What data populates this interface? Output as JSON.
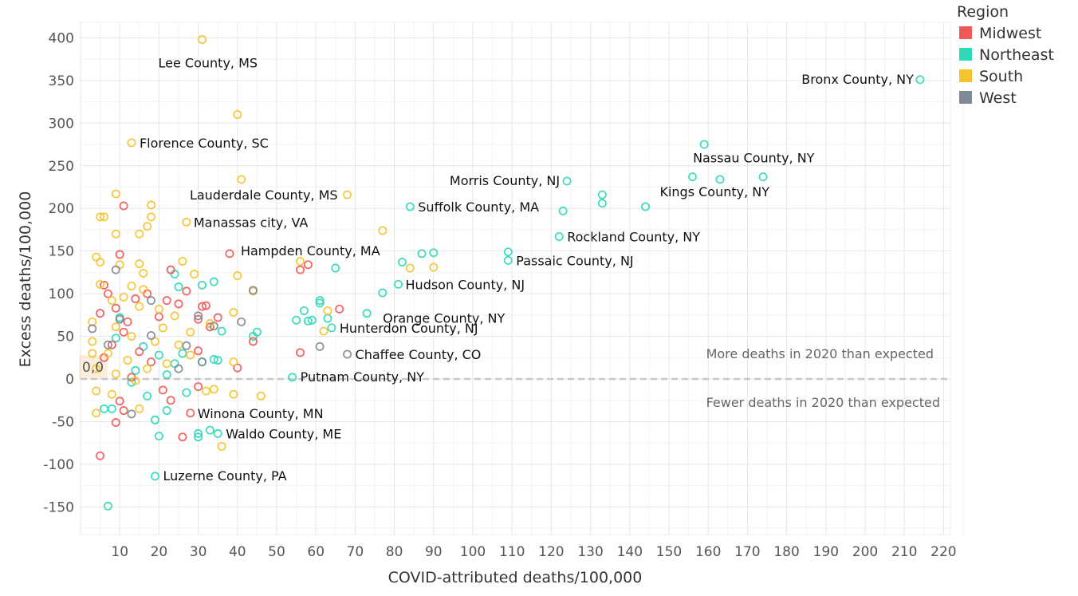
{
  "chart_data": {
    "type": "scatter",
    "xlabel": "COVID-attributed deaths/100,000",
    "ylabel": "Excess deaths/100,000",
    "xlim": [
      0,
      225
    ],
    "ylim": [
      -180,
      400
    ],
    "xticks": [
      10,
      20,
      30,
      40,
      50,
      60,
      70,
      80,
      90,
      100,
      110,
      120,
      130,
      140,
      150,
      160,
      170,
      180,
      190,
      200,
      210,
      220
    ],
    "yticks": [
      -150,
      -100,
      -50,
      0,
      50,
      100,
      150,
      200,
      250,
      300,
      350,
      400
    ],
    "reference_line": {
      "y": 0,
      "style": "dashed"
    },
    "origin_label": "0,0",
    "notes": {
      "above": "More deaths in 2020 than expected",
      "below": "Fewer deaths in 2020 than expected"
    },
    "legend": {
      "title": "Region",
      "position": "top-right",
      "items": [
        {
          "name": "Midwest",
          "color": "#f25757"
        },
        {
          "name": "Northeast",
          "color": "#2ed9b8"
        },
        {
          "name": "South",
          "color": "#f5c32c"
        },
        {
          "name": "West",
          "color": "#808a96"
        }
      ]
    },
    "labeled_points": [
      {
        "label": "Lee County, MS",
        "region": "South",
        "x": 31,
        "y": 398
      },
      {
        "label": "Bronx County, NY",
        "region": "Northeast",
        "x": 214,
        "y": 351
      },
      {
        "label": "Florence County, SC",
        "region": "South",
        "x": 13,
        "y": 277
      },
      {
        "label": "Nassau County, NY",
        "region": "Northeast",
        "x": 174,
        "y": 237
      },
      {
        "label": "Morris County, NJ",
        "region": "Northeast",
        "x": 124,
        "y": 232
      },
      {
        "label": "Lauderdale County, MS",
        "region": "South",
        "x": 68,
        "y": 216
      },
      {
        "label": "Kings County, NY",
        "region": "Northeast",
        "x": 144,
        "y": 202
      },
      {
        "label": "Suffolk County, MA",
        "region": "Northeast",
        "x": 84,
        "y": 202
      },
      {
        "label": "Manassas city, VA",
        "region": "South",
        "x": 27,
        "y": 184
      },
      {
        "label": "Rockland County, NY",
        "region": "Northeast",
        "x": 122,
        "y": 167
      },
      {
        "label": "Hampden County, MA",
        "region": "Midwest",
        "x": 38,
        "y": 147
      },
      {
        "label": "Passaic County, NJ",
        "region": "Northeast",
        "x": 109,
        "y": 139
      },
      {
        "label": "Hudson County, NJ",
        "region": "Northeast",
        "x": 81,
        "y": 111
      },
      {
        "label": "Orange County, NY",
        "region": "Northeast",
        "x": 73,
        "y": 77
      },
      {
        "label": "Hunterdon County, NJ",
        "region": "Northeast",
        "x": 64,
        "y": 60
      },
      {
        "label": "Chaffee County, CO",
        "region": "West",
        "x": 68,
        "y": 29
      },
      {
        "label": "Putnam County, NY",
        "region": "Northeast",
        "x": 54,
        "y": 2
      },
      {
        "label": "Winona County, MN",
        "region": "Midwest",
        "x": 28,
        "y": -40
      },
      {
        "label": "Waldo County, ME",
        "region": "Northeast",
        "x": 35,
        "y": -64
      },
      {
        "label": "Luzerne County, PA",
        "region": "Northeast",
        "x": 19,
        "y": -114
      }
    ],
    "points": [
      {
        "region": "Northeast",
        "x": 159,
        "y": 275
      },
      {
        "region": "Northeast",
        "x": 156,
        "y": 237
      },
      {
        "region": "Northeast",
        "x": 163,
        "y": 234
      },
      {
        "region": "Northeast",
        "x": 133,
        "y": 216
      },
      {
        "region": "Northeast",
        "x": 133,
        "y": 206
      },
      {
        "region": "Northeast",
        "x": 123,
        "y": 197
      },
      {
        "region": "Northeast",
        "x": 109,
        "y": 149
      },
      {
        "region": "Northeast",
        "x": 90,
        "y": 148
      },
      {
        "region": "Northeast",
        "x": 87,
        "y": 147
      },
      {
        "region": "Northeast",
        "x": 82,
        "y": 137
      },
      {
        "region": "Northeast",
        "x": 77,
        "y": 101
      },
      {
        "region": "Northeast",
        "x": 65,
        "y": 130
      },
      {
        "region": "Northeast",
        "x": 61,
        "y": 92
      },
      {
        "region": "Northeast",
        "x": 61,
        "y": 89
      },
      {
        "region": "Northeast",
        "x": 58,
        "y": 68
      },
      {
        "region": "Northeast",
        "x": 59,
        "y": 69
      },
      {
        "region": "Northeast",
        "x": 55,
        "y": 69
      },
      {
        "region": "Northeast",
        "x": 57,
        "y": 80
      },
      {
        "region": "Northeast",
        "x": 63,
        "y": 71
      },
      {
        "region": "Northeast",
        "x": 45,
        "y": 55
      },
      {
        "region": "Northeast",
        "x": 44,
        "y": 50
      },
      {
        "region": "Northeast",
        "x": 34,
        "y": 114
      },
      {
        "region": "Northeast",
        "x": 31,
        "y": 110
      },
      {
        "region": "Northeast",
        "x": 25,
        "y": 108
      },
      {
        "region": "Northeast",
        "x": 24,
        "y": 123
      },
      {
        "region": "Northeast",
        "x": 36,
        "y": 56
      },
      {
        "region": "Northeast",
        "x": 34,
        "y": 23
      },
      {
        "region": "Northeast",
        "x": 35,
        "y": 22
      },
      {
        "region": "Northeast",
        "x": 31,
        "y": 20
      },
      {
        "region": "Northeast",
        "x": 26,
        "y": 30
      },
      {
        "region": "Northeast",
        "x": 24,
        "y": 18
      },
      {
        "region": "Northeast",
        "x": 22,
        "y": 5
      },
      {
        "region": "Northeast",
        "x": 27,
        "y": -16
      },
      {
        "region": "Northeast",
        "x": 30,
        "y": -64
      },
      {
        "region": "Northeast",
        "x": 30,
        "y": -68
      },
      {
        "region": "Northeast",
        "x": 33,
        "y": -60
      },
      {
        "region": "Northeast",
        "x": 20,
        "y": -67
      },
      {
        "region": "Northeast",
        "x": 19,
        "y": -48
      },
      {
        "region": "Northeast",
        "x": 22,
        "y": -37
      },
      {
        "region": "Northeast",
        "x": 17,
        "y": -20
      },
      {
        "region": "Northeast",
        "x": 13,
        "y": -4
      },
      {
        "region": "Northeast",
        "x": 6,
        "y": -35
      },
      {
        "region": "Northeast",
        "x": 8,
        "y": -35
      },
      {
        "region": "Northeast",
        "x": 7,
        "y": -149
      },
      {
        "region": "Northeast",
        "x": 10,
        "y": 72
      },
      {
        "region": "Northeast",
        "x": 9,
        "y": 48
      },
      {
        "region": "Northeast",
        "x": 16,
        "y": 38
      },
      {
        "region": "Northeast",
        "x": 20,
        "y": 28
      },
      {
        "region": "Northeast",
        "x": 14,
        "y": 10
      },
      {
        "region": "Midwest",
        "x": 11,
        "y": 203
      },
      {
        "region": "Midwest",
        "x": 10,
        "y": 146
      },
      {
        "region": "Midwest",
        "x": 56,
        "y": 128
      },
      {
        "region": "Midwest",
        "x": 58,
        "y": 134
      },
      {
        "region": "Midwest",
        "x": 66,
        "y": 82
      },
      {
        "region": "Midwest",
        "x": 56,
        "y": 31
      },
      {
        "region": "Midwest",
        "x": 44,
        "y": 44
      },
      {
        "region": "Midwest",
        "x": 40,
        "y": 13
      },
      {
        "region": "Midwest",
        "x": 27,
        "y": 103
      },
      {
        "region": "Midwest",
        "x": 23,
        "y": 128
      },
      {
        "region": "Midwest",
        "x": 31,
        "y": 85
      },
      {
        "region": "Midwest",
        "x": 32,
        "y": 86
      },
      {
        "region": "Midwest",
        "x": 30,
        "y": 70
      },
      {
        "region": "Midwest",
        "x": 25,
        "y": 88
      },
      {
        "region": "Midwest",
        "x": 22,
        "y": 92
      },
      {
        "region": "Midwest",
        "x": 20,
        "y": 73
      },
      {
        "region": "Midwest",
        "x": 17,
        "y": 100
      },
      {
        "region": "Midwest",
        "x": 14,
        "y": 94
      },
      {
        "region": "Midwest",
        "x": 6,
        "y": 110
      },
      {
        "region": "Midwest",
        "x": 7,
        "y": 100
      },
      {
        "region": "Midwest",
        "x": 9,
        "y": 83
      },
      {
        "region": "Midwest",
        "x": 12,
        "y": 67
      },
      {
        "region": "Midwest",
        "x": 5,
        "y": 77
      },
      {
        "region": "Midwest",
        "x": 11,
        "y": 55
      },
      {
        "region": "Midwest",
        "x": 8,
        "y": 40
      },
      {
        "region": "Midwest",
        "x": 6,
        "y": 25
      },
      {
        "region": "Midwest",
        "x": 15,
        "y": 32
      },
      {
        "region": "Midwest",
        "x": 18,
        "y": 20
      },
      {
        "region": "Midwest",
        "x": 13,
        "y": 2
      },
      {
        "region": "Midwest",
        "x": 10,
        "y": -26
      },
      {
        "region": "Midwest",
        "x": 11,
        "y": -37
      },
      {
        "region": "Midwest",
        "x": 9,
        "y": -51
      },
      {
        "region": "Midwest",
        "x": 23,
        "y": -25
      },
      {
        "region": "Midwest",
        "x": 21,
        "y": -13
      },
      {
        "region": "Midwest",
        "x": 26,
        "y": -68
      },
      {
        "region": "Midwest",
        "x": 5,
        "y": -90
      },
      {
        "region": "Midwest",
        "x": 30,
        "y": 33
      },
      {
        "region": "Midwest",
        "x": 30,
        "y": -9
      },
      {
        "region": "Midwest",
        "x": 35,
        "y": 72
      },
      {
        "region": "Midwest",
        "x": 33,
        "y": 61
      },
      {
        "region": "South",
        "x": 40,
        "y": 310
      },
      {
        "region": "South",
        "x": 41,
        "y": 234
      },
      {
        "region": "South",
        "x": 9,
        "y": 217
      },
      {
        "region": "South",
        "x": 18,
        "y": 204
      },
      {
        "region": "South",
        "x": 5,
        "y": 190
      },
      {
        "region": "South",
        "x": 6,
        "y": 190
      },
      {
        "region": "South",
        "x": 18,
        "y": 190
      },
      {
        "region": "South",
        "x": 17,
        "y": 179
      },
      {
        "region": "South",
        "x": 9,
        "y": 170
      },
      {
        "region": "South",
        "x": 15,
        "y": 170
      },
      {
        "region": "South",
        "x": 77,
        "y": 174
      },
      {
        "region": "South",
        "x": 84,
        "y": 130
      },
      {
        "region": "South",
        "x": 90,
        "y": 131
      },
      {
        "region": "South",
        "x": 56,
        "y": 138
      },
      {
        "region": "South",
        "x": 40,
        "y": 121
      },
      {
        "region": "South",
        "x": 44,
        "y": 103
      },
      {
        "region": "South",
        "x": 39,
        "y": 78
      },
      {
        "region": "South",
        "x": 63,
        "y": 80
      },
      {
        "region": "South",
        "x": 62,
        "y": 56
      },
      {
        "region": "South",
        "x": 39,
        "y": 20
      },
      {
        "region": "South",
        "x": 39,
        "y": -18
      },
      {
        "region": "South",
        "x": 46,
        "y": -20
      },
      {
        "region": "South",
        "x": 36,
        "y": -79
      },
      {
        "region": "South",
        "x": 4,
        "y": 143
      },
      {
        "region": "South",
        "x": 5,
        "y": 137
      },
      {
        "region": "South",
        "x": 10,
        "y": 134
      },
      {
        "region": "South",
        "x": 15,
        "y": 135
      },
      {
        "region": "South",
        "x": 16,
        "y": 124
      },
      {
        "region": "South",
        "x": 26,
        "y": 138
      },
      {
        "region": "South",
        "x": 29,
        "y": 123
      },
      {
        "region": "South",
        "x": 5,
        "y": 111
      },
      {
        "region": "South",
        "x": 13,
        "y": 109
      },
      {
        "region": "South",
        "x": 16,
        "y": 105
      },
      {
        "region": "South",
        "x": 11,
        "y": 96
      },
      {
        "region": "South",
        "x": 8,
        "y": 92
      },
      {
        "region": "South",
        "x": 15,
        "y": 85
      },
      {
        "region": "South",
        "x": 20,
        "y": 82
      },
      {
        "region": "South",
        "x": 24,
        "y": 74
      },
      {
        "region": "South",
        "x": 3,
        "y": 67
      },
      {
        "region": "South",
        "x": 9,
        "y": 61
      },
      {
        "region": "South",
        "x": 13,
        "y": 50
      },
      {
        "region": "South",
        "x": 19,
        "y": 44
      },
      {
        "region": "South",
        "x": 25,
        "y": 40
      },
      {
        "region": "South",
        "x": 28,
        "y": 28
      },
      {
        "region": "South",
        "x": 3,
        "y": 44
      },
      {
        "region": "South",
        "x": 7,
        "y": 30
      },
      {
        "region": "South",
        "x": 12,
        "y": 22
      },
      {
        "region": "South",
        "x": 17,
        "y": 12
      },
      {
        "region": "South",
        "x": 22,
        "y": 18
      },
      {
        "region": "South",
        "x": 4,
        "y": 12
      },
      {
        "region": "South",
        "x": 9,
        "y": 6
      },
      {
        "region": "South",
        "x": 14,
        "y": -2
      },
      {
        "region": "South",
        "x": 4,
        "y": -14
      },
      {
        "region": "South",
        "x": 8,
        "y": -18
      },
      {
        "region": "South",
        "x": 4,
        "y": -40
      },
      {
        "region": "South",
        "x": 15,
        "y": -35
      },
      {
        "region": "South",
        "x": 32,
        "y": -14
      },
      {
        "region": "South",
        "x": 34,
        "y": -12
      },
      {
        "region": "South",
        "x": 33,
        "y": 65
      },
      {
        "region": "South",
        "x": 28,
        "y": 55
      },
      {
        "region": "South",
        "x": 21,
        "y": 60
      },
      {
        "region": "South",
        "x": 3,
        "y": 30
      },
      {
        "region": "West",
        "x": 44,
        "y": 104
      },
      {
        "region": "West",
        "x": 41,
        "y": 67
      },
      {
        "region": "West",
        "x": 61,
        "y": 38
      },
      {
        "region": "West",
        "x": 18,
        "y": 92
      },
      {
        "region": "West",
        "x": 10,
        "y": 70
      },
      {
        "region": "West",
        "x": 3,
        "y": 59
      },
      {
        "region": "West",
        "x": 18,
        "y": 51
      },
      {
        "region": "West",
        "x": 27,
        "y": 39
      },
      {
        "region": "West",
        "x": 30,
        "y": 74
      },
      {
        "region": "West",
        "x": 31,
        "y": 20
      },
      {
        "region": "West",
        "x": 25,
        "y": 12
      },
      {
        "region": "West",
        "x": 7,
        "y": 40
      },
      {
        "region": "West",
        "x": 13,
        "y": -41
      },
      {
        "region": "West",
        "x": 9,
        "y": 128
      },
      {
        "region": "West",
        "x": 34,
        "y": 62
      }
    ]
  }
}
